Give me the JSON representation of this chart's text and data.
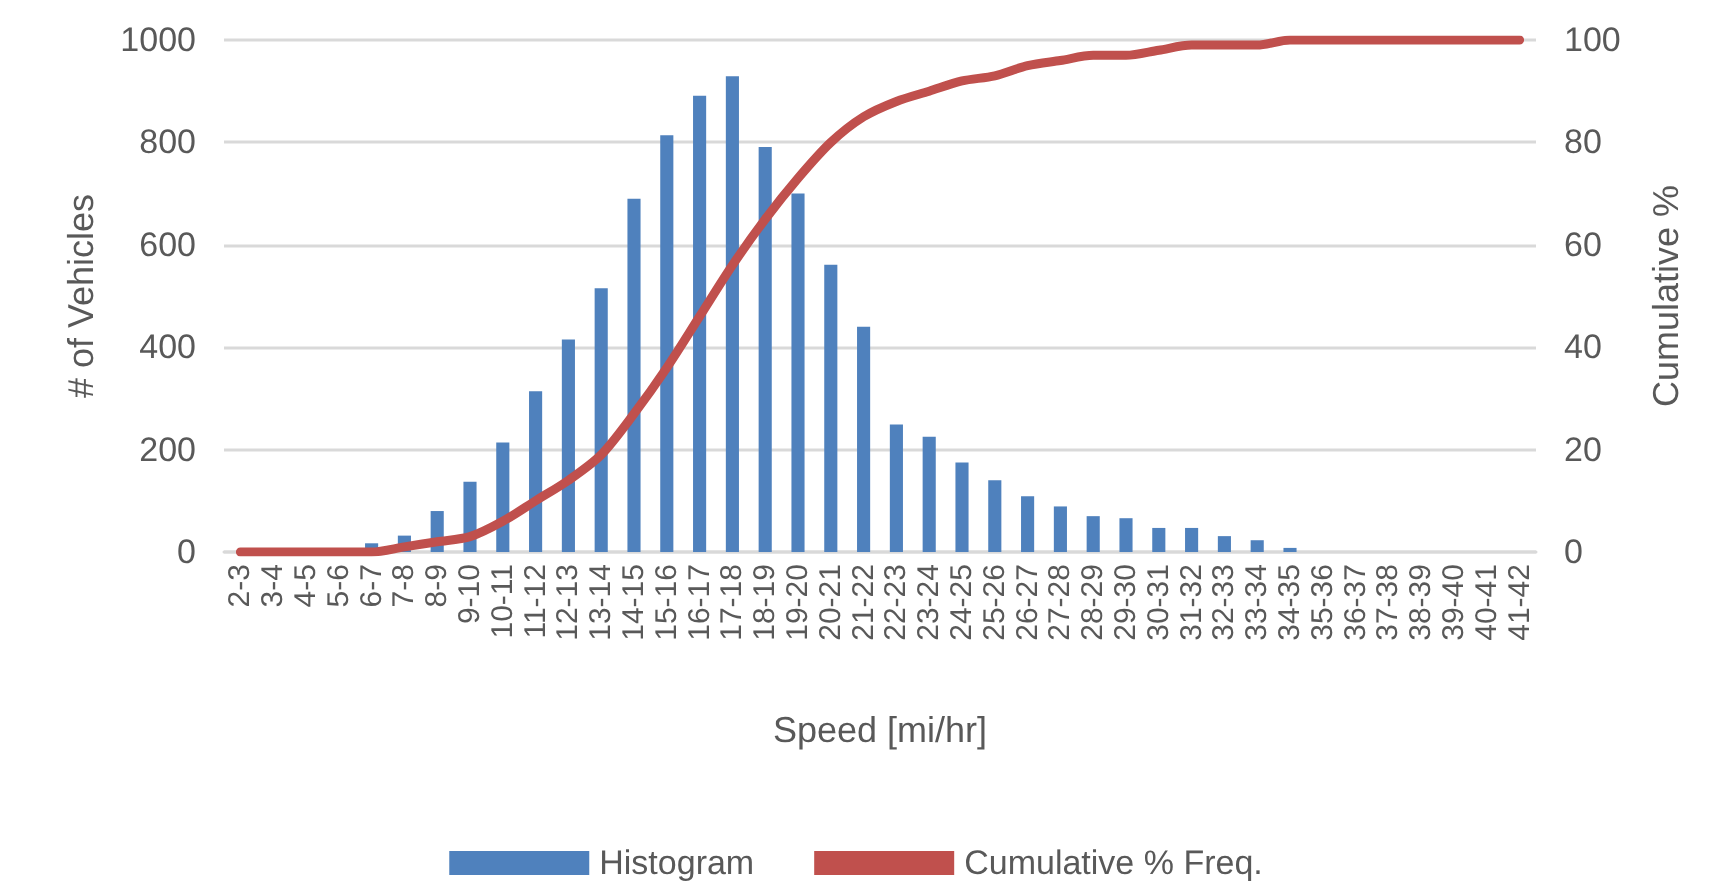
{
  "chart_data": {
    "type": "bar",
    "xlabel": "Speed [mi/hr]",
    "ylabel": "# of Vehicles",
    "y2label": "Cumulative %",
    "categories": [
      "2-3",
      "3-4",
      "4-5",
      "5-6",
      "6-7",
      "7-8",
      "8-9",
      "9-10",
      "10-11",
      "11-12",
      "12-13",
      "13-14",
      "14-15",
      "15-16",
      "16-17",
      "17-18",
      "18-19",
      "19-20",
      "20-21",
      "21-22",
      "22-23",
      "23-24",
      "24-25",
      "25-26",
      "26-27",
      "27-28",
      "28-29",
      "29-30",
      "30-31",
      "31-32",
      "32-33",
      "33-34",
      "34-35",
      "35-36",
      "36-37",
      "37-38",
      "38-39",
      "39-40",
      "40-41",
      "41-42"
    ],
    "series": [
      {
        "name": "Histogram",
        "color": "#4f81bd",
        "values": [
          0,
          0,
          0,
          0,
          17,
          32,
          80,
          137,
          214,
          314,
          415,
          515,
          690,
          814,
          891,
          929,
          791,
          700,
          561,
          440,
          249,
          225,
          175,
          140,
          109,
          89,
          70,
          66,
          47,
          47,
          31,
          23,
          8,
          0,
          0,
          0,
          0,
          0,
          0,
          0
        ]
      },
      {
        "name": "Cumulative % Freq.",
        "type": "line",
        "axis": "y2",
        "color": "#c0504d",
        "values": [
          0,
          0,
          0,
          0,
          0,
          1,
          2,
          3,
          6,
          10,
          14,
          19,
          27,
          36,
          46,
          56,
          65,
          73,
          80,
          85,
          88,
          90,
          92,
          93,
          95,
          96,
          97,
          97,
          98,
          99,
          99,
          99,
          100,
          100,
          100,
          100,
          100,
          100,
          100,
          100
        ]
      }
    ],
    "ylim": [
      0,
      1000
    ],
    "yticks": [
      0,
      200,
      400,
      600,
      800,
      1000
    ],
    "y2lim": [
      0,
      100
    ],
    "y2ticks": [
      0,
      20,
      40,
      60,
      80,
      100
    ],
    "grid": "y",
    "legend": "bottom",
    "marker": "none",
    "line_style": "solid"
  }
}
